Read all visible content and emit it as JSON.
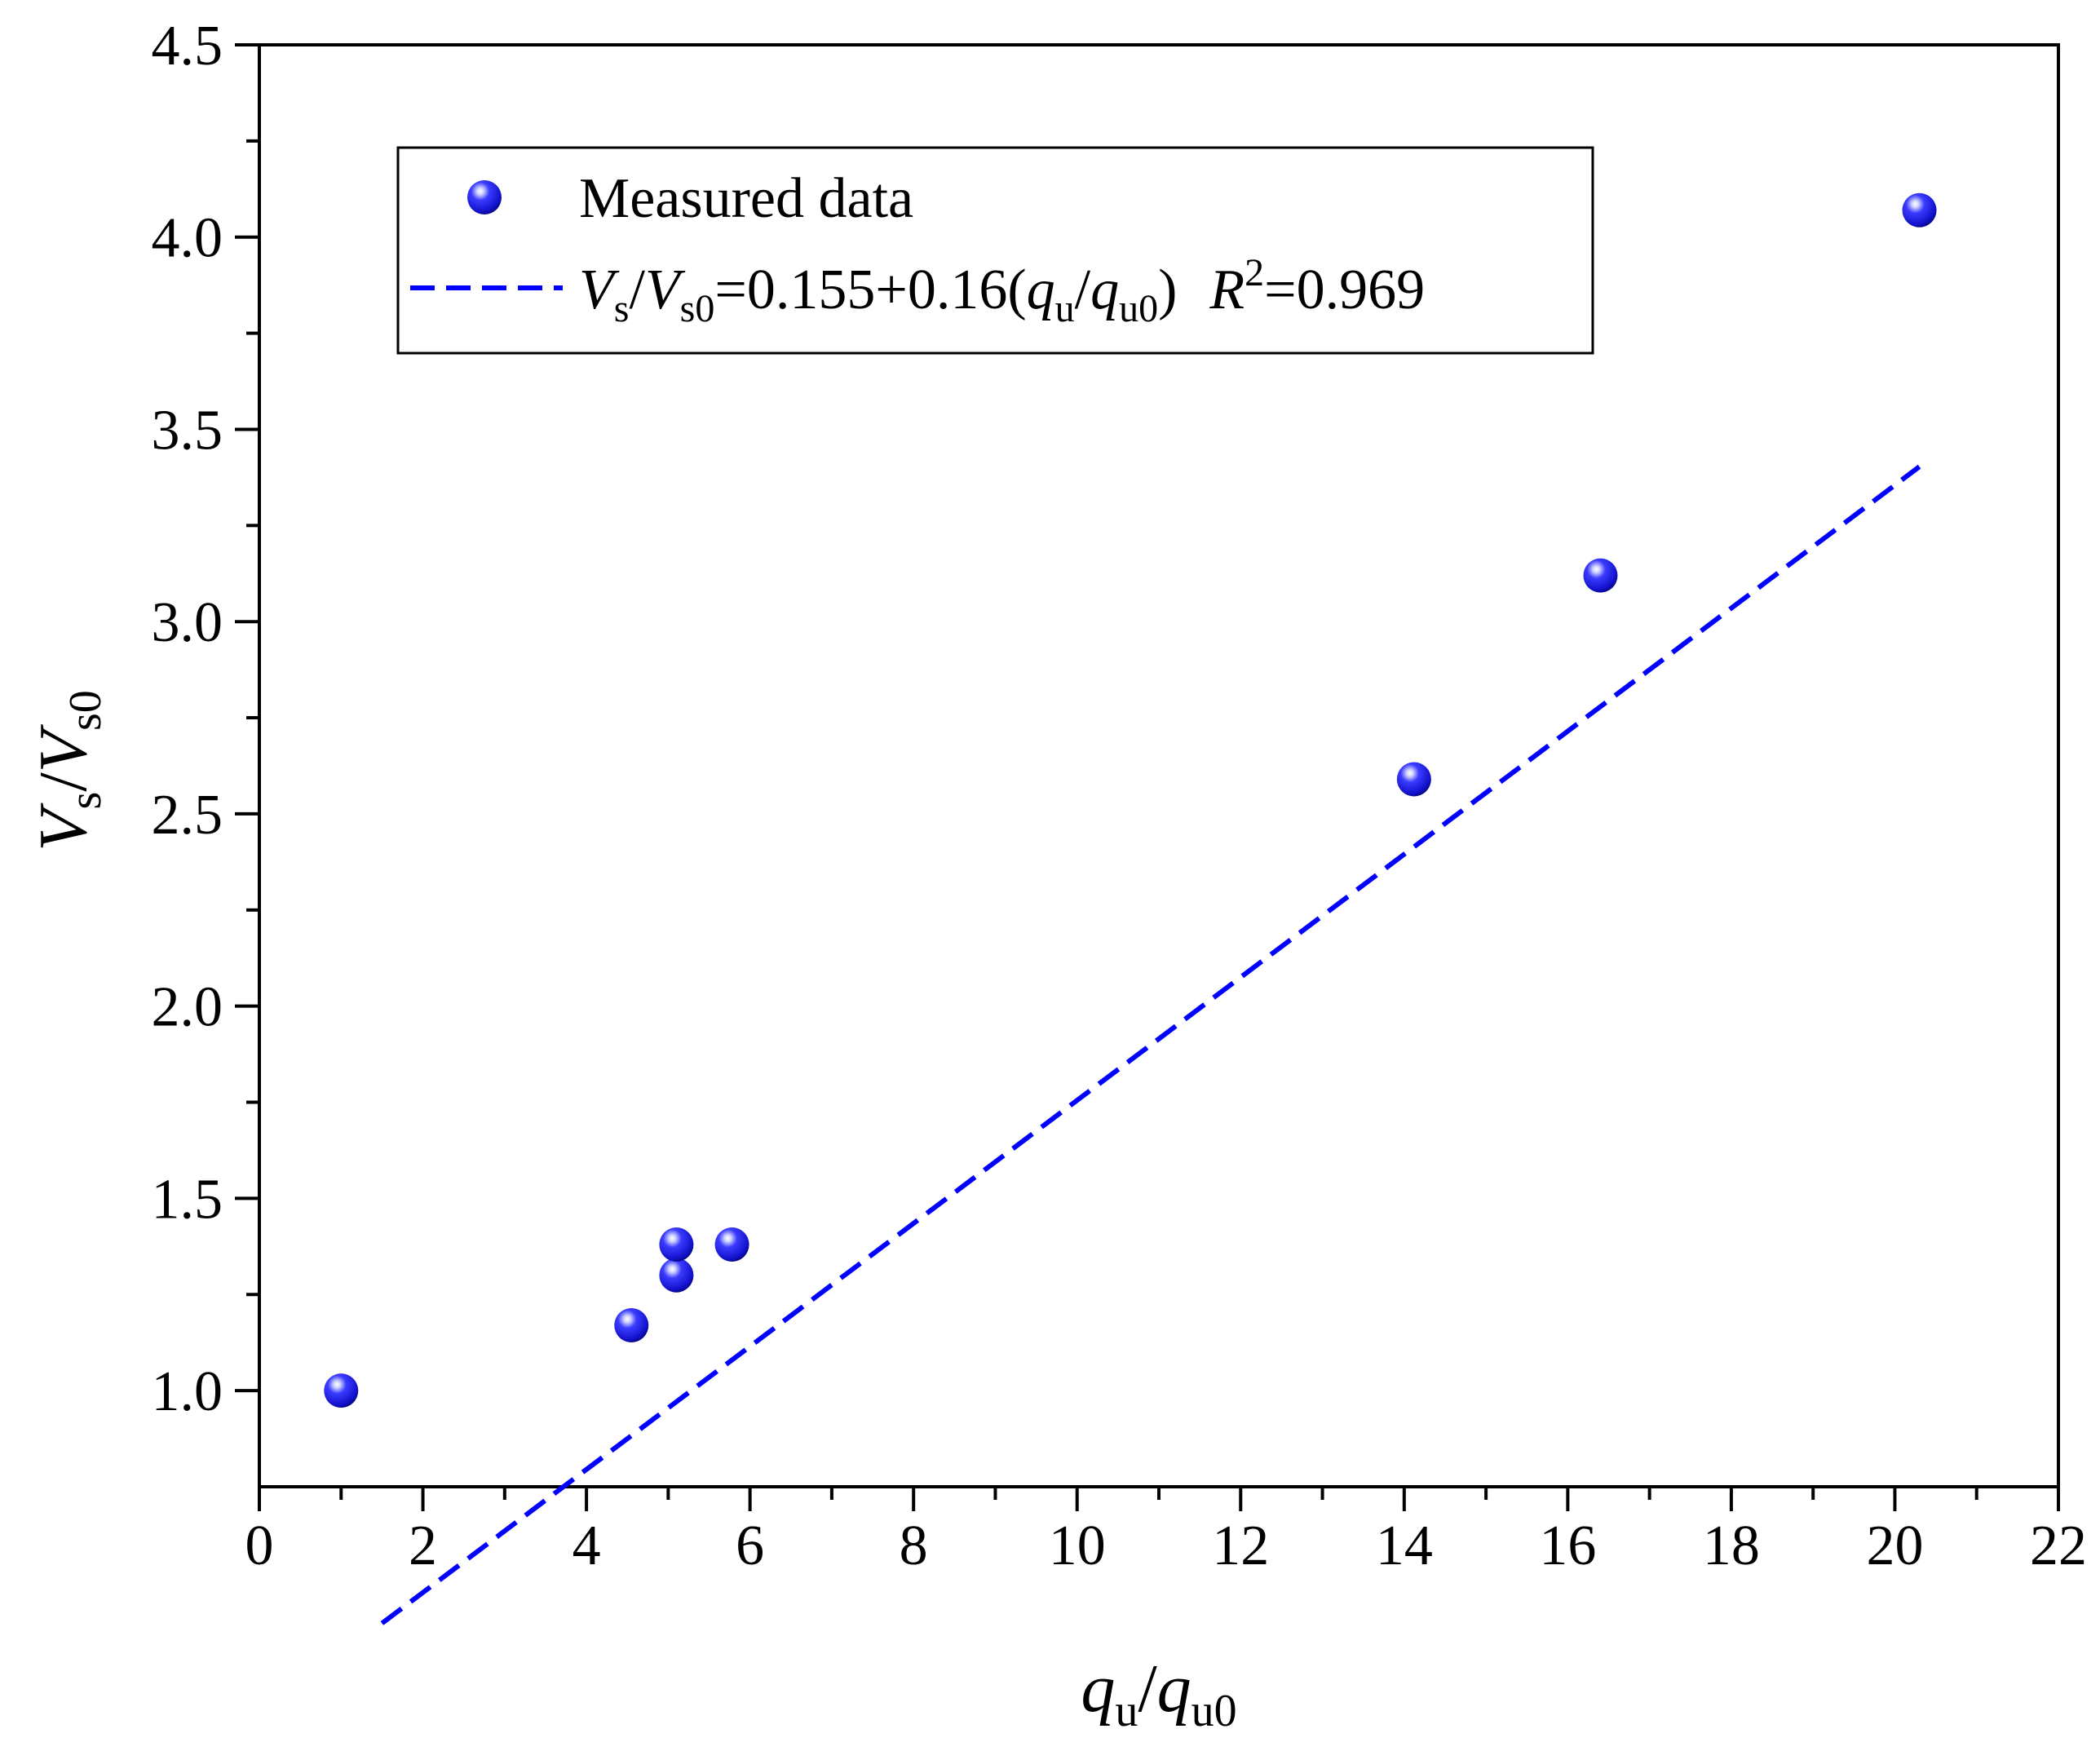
{
  "chart_data": {
    "type": "scatter",
    "xlim": [
      0,
      22
    ],
    "ylim": [
      0.75,
      4.5
    ],
    "x_ticks": [
      0,
      2,
      4,
      6,
      8,
      10,
      12,
      14,
      16,
      18,
      20,
      22
    ],
    "y_ticks": [
      1.0,
      1.5,
      2.0,
      2.5,
      3.0,
      3.5,
      4.0,
      4.5
    ],
    "x_tick_labels": [
      "0",
      "2",
      "4",
      "6",
      "8",
      "10",
      "12",
      "14",
      "16",
      "18",
      "20",
      "22"
    ],
    "y_tick_labels": [
      "1.0",
      "1.5",
      "2.0",
      "2.5",
      "3.0",
      "3.5",
      "4.0",
      "4.5"
    ],
    "grid": false,
    "xlabel": {
      "base1": "q",
      "sub1": "u",
      "slash": "/",
      "base2": "q",
      "sub2": "u0"
    },
    "ylabel": {
      "base1": "V",
      "sub1": "s",
      "slash": "/",
      "base2": "V",
      "sub2": "s0"
    },
    "series": [
      {
        "name": "Measured data",
        "kind": "scatter",
        "color": "#1010e8",
        "x": [
          1.0,
          4.55,
          5.1,
          5.1,
          5.78,
          14.12,
          16.4,
          20.3
        ],
        "y": [
          1.0,
          1.17,
          1.3,
          1.38,
          1.38,
          2.59,
          3.12,
          4.07
        ]
      },
      {
        "name": "Vs/Vs0=0.155+0.16(qu/qu0)  R2=0.969",
        "kind": "fit-line",
        "color": "#0000ff",
        "intercept": 0.155,
        "slope": 0.16,
        "x_range": [
          1.5,
          20.3
        ]
      }
    ],
    "legend": {
      "placement": "top-left",
      "entry1": "Measured data",
      "formula": {
        "v1": "V",
        "s1": "s",
        "slash1": "/",
        "v2": "V",
        "s2": "s0",
        "rhs": "=0.155+0.16(",
        "q1": "q",
        "u1": "u",
        "slash2": "/",
        "q2": "q",
        "u2": "u0",
        "close": ")",
        "r": "R",
        "sup": "2",
        "rval": "=0.969"
      }
    }
  }
}
